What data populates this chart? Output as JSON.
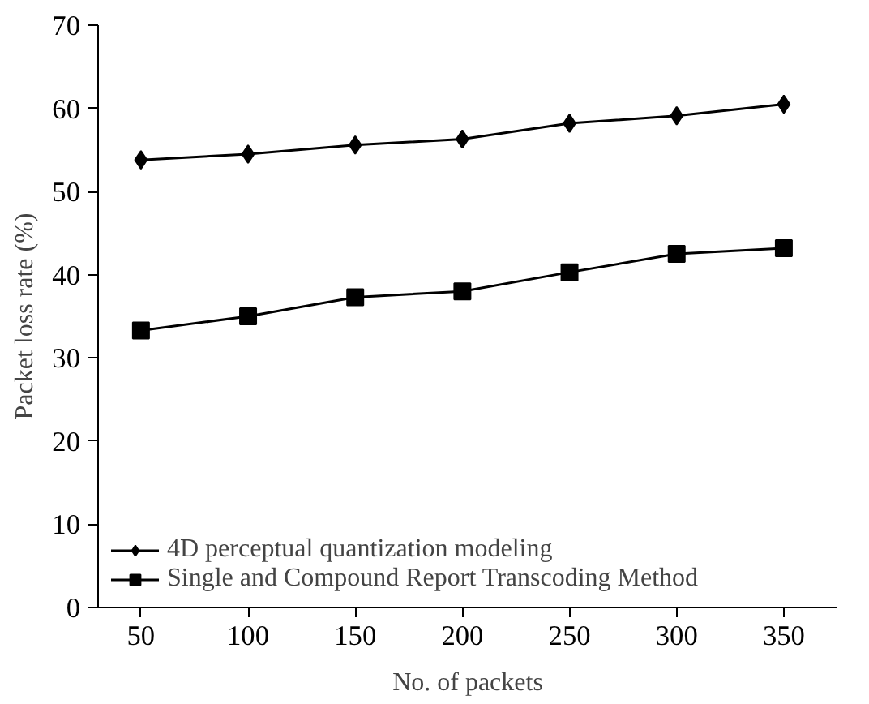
{
  "chart_data": {
    "type": "line",
    "xlabel": "No. of packets",
    "ylabel": "Packet loss rate (%)",
    "x": [
      50,
      100,
      150,
      200,
      250,
      300,
      350
    ],
    "xlim": [
      30,
      375
    ],
    "xticks": [
      50,
      100,
      150,
      200,
      250,
      300,
      350
    ],
    "ylim": [
      0,
      70
    ],
    "yticks": [
      0,
      10,
      20,
      30,
      40,
      50,
      60,
      70
    ],
    "grid": false,
    "legend": "bottom left",
    "line_style": "solid",
    "series": [
      {
        "name": "4D perceptual quantization modeling",
        "color": "#000000",
        "marker": "diamond",
        "values": [
          53.8,
          54.5,
          55.6,
          56.3,
          58.2,
          59.1,
          60.5
        ]
      },
      {
        "name": "Single and Compound Report Transcoding Method",
        "color": "#000000",
        "marker": "square",
        "values": [
          33.3,
          35.0,
          37.3,
          38.0,
          40.3,
          42.5,
          43.2
        ]
      }
    ]
  }
}
